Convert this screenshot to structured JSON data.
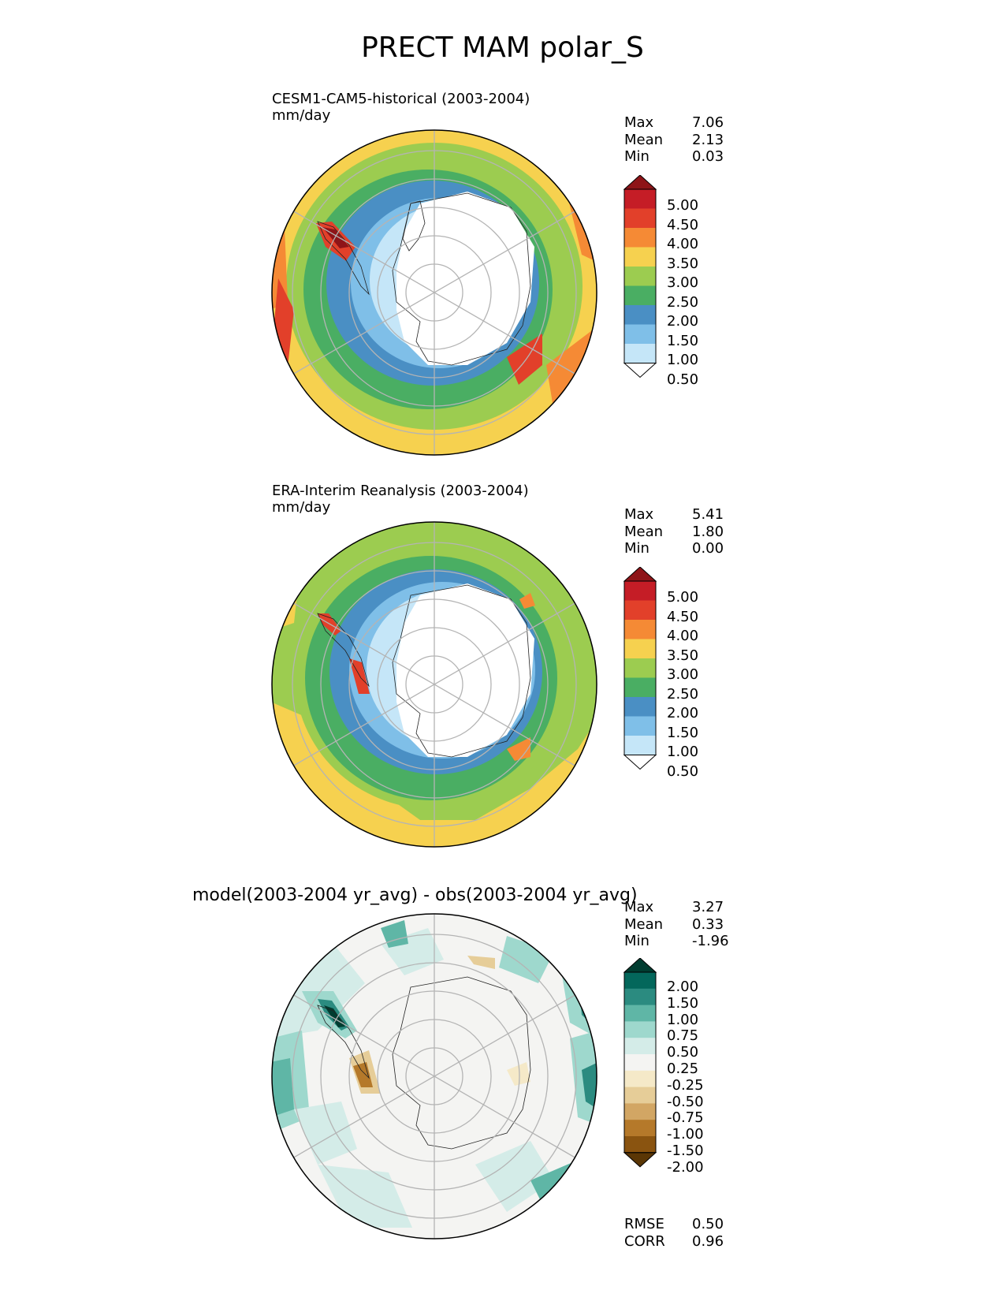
{
  "figure": {
    "title": "PRECT MAM polar_S"
  },
  "panels": [
    {
      "id": "test",
      "title": "CESM1-CAM5-historical (2003-2004)",
      "units": "mm/day",
      "stats": [
        {
          "label": "Max",
          "value": "7.06"
        },
        {
          "label": "Mean",
          "value": "2.13"
        },
        {
          "label": "Min",
          "value": "0.03"
        }
      ],
      "colorbar": {
        "labels": [
          "5.00",
          "4.50",
          "4.00",
          "3.50",
          "3.00",
          "2.50",
          "2.00",
          "1.50",
          "1.00",
          "0.50"
        ],
        "colors": [
          "#ffffff",
          "#c5e6f8",
          "#7fbfe8",
          "#4a8fc4",
          "#4aae63",
          "#9ccc50",
          "#f6d14f",
          "#f58a35",
          "#e2402a",
          "#c51d26",
          "#8e1418"
        ]
      }
    },
    {
      "id": "ref",
      "title": "ERA-Interim Reanalysis (2003-2004)",
      "units": "mm/day",
      "stats": [
        {
          "label": "Max",
          "value": "5.41"
        },
        {
          "label": "Mean",
          "value": "1.80"
        },
        {
          "label": "Min",
          "value": "0.00"
        }
      ],
      "colorbar": {
        "labels": [
          "5.00",
          "4.50",
          "4.00",
          "3.50",
          "3.00",
          "2.50",
          "2.00",
          "1.50",
          "1.00",
          "0.50"
        ],
        "colors": [
          "#ffffff",
          "#c5e6f8",
          "#7fbfe8",
          "#4a8fc4",
          "#4aae63",
          "#9ccc50",
          "#f6d14f",
          "#f58a35",
          "#e2402a",
          "#c51d26",
          "#8e1418"
        ]
      }
    },
    {
      "id": "diff",
      "title": "model(2003-2004 yr_avg) - obs(2003-2004 yr_avg)",
      "units": "",
      "stats": [
        {
          "label": "Max",
          "value": "3.27"
        },
        {
          "label": "Mean",
          "value": "0.33"
        },
        {
          "label": "Min",
          "value": "-1.96"
        }
      ],
      "extra_stats": [
        {
          "label": "RMSE",
          "value": "0.50"
        },
        {
          "label": "CORR",
          "value": "0.96"
        }
      ],
      "colorbar": {
        "labels": [
          "2.00",
          "1.50",
          "1.00",
          "0.75",
          "0.50",
          "0.25",
          "-0.25",
          "-0.50",
          "-0.75",
          "-1.00",
          "-1.50",
          "-2.00"
        ],
        "colors": [
          "#5a3605",
          "#8a5410",
          "#b5792a",
          "#d2a664",
          "#e6cd98",
          "#f5e9c8",
          "#f4f4f2",
          "#d4ece8",
          "#9ed8cd",
          "#5fb6a6",
          "#2b8b80",
          "#03675b",
          "#003c30"
        ]
      }
    }
  ]
}
